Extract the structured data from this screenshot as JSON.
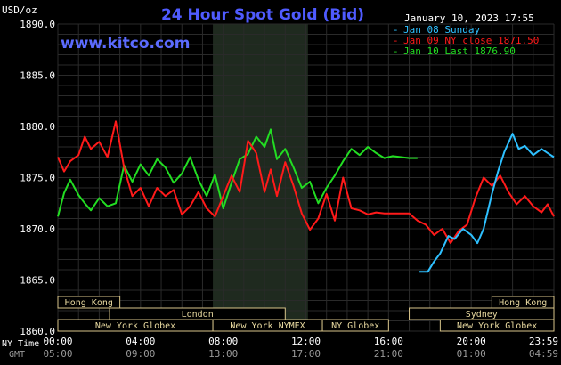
{
  "header": {
    "title": "24 Hour Spot Gold (Bid)",
    "unit": "USD/oz",
    "watermark": "www.kitco.com",
    "datetime": "January 10, 2023 17:55"
  },
  "colors": {
    "background": "#000000",
    "grid": "#2a2a2a",
    "shade": "#1f2a1f",
    "title": "#4f5bff",
    "watermark": "#5b6bff",
    "text": "#ffffff",
    "axis_time": "#ffffff",
    "axis_gmt": "#9a9a9a",
    "session_fill": "#000000",
    "session_border": "#d8c58a",
    "session_text": "#e8d9a0"
  },
  "chart_data": {
    "type": "line",
    "title": "24 Hour Spot Gold (Bid)",
    "ylabel": "USD/oz",
    "ylim": [
      1860,
      1890
    ],
    "yticks": [
      "1890.0",
      "1885.0",
      "1880.0",
      "1875.0",
      "1870.0",
      "1865.0",
      "1860.0"
    ],
    "x_range_hours": [
      0,
      24
    ],
    "xticks_ny": [
      "00:00",
      "04:00",
      "08:00",
      "12:00",
      "16:00",
      "20:00",
      "23:59"
    ],
    "xticks_gmt": [
      "05:00",
      "09:00",
      "13:00",
      "17:00",
      "21:00",
      "01:00",
      "04:59"
    ],
    "x_axis_labels": [
      "NY Time",
      "GMT"
    ],
    "grid": true,
    "legend_position": "top-right",
    "legend": [
      {
        "label": "Jan 08 Sunday",
        "color": "#2ec0ff"
      },
      {
        "label": "Jan 09 NY close 1871.50",
        "color": "#ff1a1a"
      },
      {
        "label": "Jan 10 Last 1876.90",
        "color": "#22dd22"
      }
    ],
    "shaded_hours": [
      [
        7.5,
        12.1
      ]
    ],
    "series": [
      {
        "name": "Jan 10 Last 1876.90",
        "color": "#22dd22",
        "x": [
          0.0,
          0.3,
          0.6,
          1.0,
          1.3,
          1.6,
          2.0,
          2.4,
          2.8,
          3.2,
          3.6,
          4.0,
          4.4,
          4.8,
          5.2,
          5.6,
          6.0,
          6.4,
          6.8,
          7.2,
          7.6,
          8.0,
          8.4,
          8.8,
          9.2,
          9.6,
          10.0,
          10.3,
          10.6,
          11.0,
          11.4,
          11.8,
          12.2,
          12.6,
          13.0,
          13.4,
          13.8,
          14.2,
          14.6,
          15.0,
          15.4,
          15.8,
          16.2,
          16.6,
          17.0,
          17.4
        ],
        "y": [
          1871.2,
          1873.5,
          1874.8,
          1873.3,
          1872.5,
          1871.8,
          1873.0,
          1872.2,
          1872.5,
          1876.2,
          1874.6,
          1876.3,
          1875.2,
          1876.8,
          1876.0,
          1874.5,
          1875.4,
          1877.0,
          1874.8,
          1873.2,
          1875.3,
          1872.0,
          1874.5,
          1876.8,
          1877.3,
          1879.0,
          1878.0,
          1879.7,
          1876.8,
          1877.8,
          1876.0,
          1874.0,
          1874.6,
          1872.5,
          1874.0,
          1875.2,
          1876.6,
          1877.8,
          1877.2,
          1878.0,
          1877.4,
          1876.9,
          1877.1,
          1877.0,
          1876.9,
          1876.9
        ]
      },
      {
        "name": "Jan 09 NY close 1871.50",
        "color": "#ff1a1a",
        "x": [
          0.0,
          0.3,
          0.6,
          1.0,
          1.3,
          1.6,
          2.0,
          2.4,
          2.8,
          3.2,
          3.6,
          4.0,
          4.4,
          4.8,
          5.2,
          5.6,
          6.0,
          6.4,
          6.8,
          7.2,
          7.6,
          8.0,
          8.4,
          8.8,
          9.2,
          9.6,
          10.0,
          10.3,
          10.6,
          11.0,
          11.4,
          11.8,
          12.2,
          12.6,
          13.0,
          13.4,
          13.8,
          14.2,
          14.6,
          15.0,
          15.4,
          15.8,
          16.2,
          16.6,
          17.0,
          17.4,
          17.8,
          18.2,
          18.6,
          19.0,
          19.4,
          19.8,
          20.2,
          20.6,
          21.0,
          21.4,
          21.8,
          22.2,
          22.6,
          23.0,
          23.4,
          23.7,
          24.0
        ],
        "y": [
          1877.0,
          1875.6,
          1876.6,
          1877.2,
          1879.0,
          1877.8,
          1878.5,
          1877.0,
          1880.5,
          1876.0,
          1873.2,
          1874.0,
          1872.2,
          1874.0,
          1873.2,
          1873.8,
          1871.4,
          1872.2,
          1873.6,
          1872.0,
          1871.2,
          1873.2,
          1875.2,
          1873.6,
          1878.6,
          1877.4,
          1873.6,
          1875.8,
          1873.2,
          1876.5,
          1874.2,
          1871.5,
          1869.9,
          1871.0,
          1873.4,
          1870.8,
          1875.0,
          1872.0,
          1871.8,
          1871.4,
          1871.6,
          1871.5,
          1871.5,
          1871.5,
          1871.5,
          1870.8,
          1870.4,
          1869.4,
          1870.0,
          1868.6,
          1869.8,
          1870.4,
          1873.0,
          1875.0,
          1874.2,
          1875.2,
          1873.6,
          1872.4,
          1873.2,
          1872.2,
          1871.6,
          1872.4,
          1871.2
        ]
      },
      {
        "name": "Jan 08 Sunday",
        "color": "#2ec0ff",
        "x": [
          17.5,
          17.9,
          18.2,
          18.5,
          18.9,
          19.2,
          19.6,
          20.0,
          20.3,
          20.6,
          21.0,
          21.3,
          21.6,
          22.0,
          22.3,
          22.6,
          23.0,
          23.4,
          23.7,
          24.0
        ],
        "y": [
          1865.8,
          1865.8,
          1866.8,
          1867.6,
          1869.3,
          1869.0,
          1870.0,
          1869.4,
          1868.6,
          1870.0,
          1873.4,
          1875.6,
          1877.5,
          1879.3,
          1877.8,
          1878.1,
          1877.2,
          1877.8,
          1877.4,
          1877.0
        ]
      }
    ]
  },
  "sessions": [
    {
      "label": "Hong Kong",
      "start": 0.0,
      "end": 3.0,
      "row": 0
    },
    {
      "label": "Hong Kong",
      "start": 21.0,
      "end": 24.0,
      "row": 0
    },
    {
      "label": "London",
      "start": 2.5,
      "end": 11.0,
      "row": 1
    },
    {
      "label": "Sydney",
      "start": 17.0,
      "end": 24.0,
      "row": 1
    },
    {
      "label": "New York Globex",
      "start": 0.0,
      "end": 7.5,
      "row": 2
    },
    {
      "label": "New York NYMEX",
      "start": 7.5,
      "end": 12.8,
      "row": 2
    },
    {
      "label": "NY Globex",
      "start": 12.8,
      "end": 16.0,
      "row": 2
    },
    {
      "label": "New York Globex",
      "start": 18.5,
      "end": 24.0,
      "row": 2
    }
  ]
}
